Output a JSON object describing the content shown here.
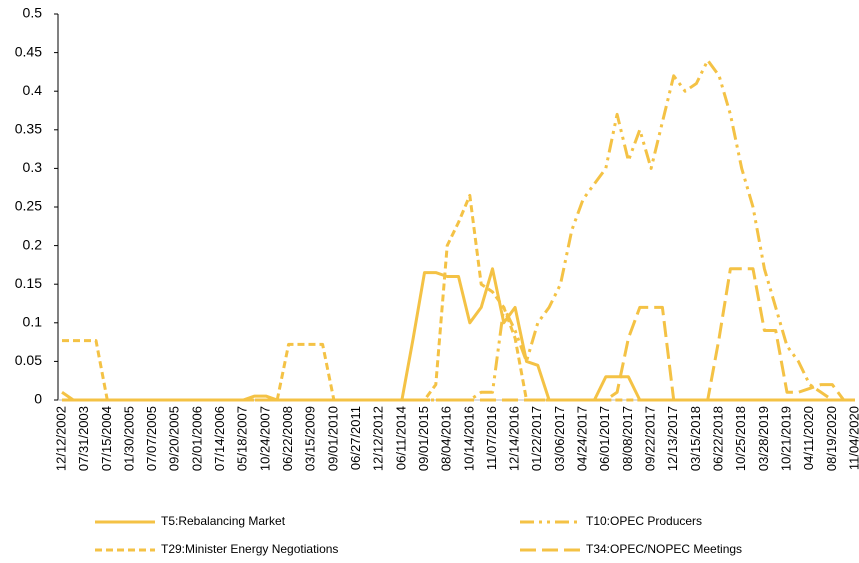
{
  "chart_data": {
    "type": "line",
    "categories": [
      "12/12/2002",
      null,
      "07/31/2003",
      null,
      "07/15/2004",
      null,
      "01/30/2005",
      null,
      "07/07/2005",
      null,
      "09/20/2005",
      null,
      "02/01/2006",
      null,
      "07/14/2006",
      null,
      "05/18/2007",
      null,
      "10/24/2007",
      null,
      "06/22/2008",
      null,
      "03/15/2009",
      null,
      "09/01/2010",
      null,
      "06/27/2011",
      null,
      "12/12/2012",
      null,
      "06/11/2014",
      null,
      "09/01/2015",
      null,
      "08/04/2016",
      null,
      "10/14/2016",
      null,
      "11/07/2016",
      null,
      "12/14/2016",
      null,
      "01/22/2017",
      null,
      "03/06/2017",
      null,
      "04/24/2017",
      null,
      "06/01/2017",
      null,
      "08/08/2017",
      null,
      "09/22/2017",
      null,
      "12/13/2017",
      null,
      "03/15/2018",
      null,
      "06/22/2018",
      null,
      "10/25/2018",
      null,
      "03/28/2019",
      null,
      "10/21/2019",
      null,
      "04/11/2020",
      null,
      "08/19/2020",
      null,
      "11/04/2020"
    ],
    "series": [
      {
        "name": "T5:Rebalancing Market",
        "color": "#f4c245",
        "values": [
          0.01,
          0,
          0,
          0,
          0,
          0,
          0,
          0,
          0,
          0,
          0,
          0,
          0,
          0,
          0,
          0,
          0,
          0.005,
          0.005,
          0,
          0,
          0,
          0,
          0,
          0,
          0,
          0,
          0,
          0,
          0,
          0,
          0.08,
          0.165,
          0.165,
          0.16,
          0.16,
          0.1,
          0.12,
          0.17,
          0.1,
          0.12,
          0.05,
          0.045,
          0,
          0,
          0,
          0,
          0,
          0.03,
          0.03,
          0.03,
          0,
          0,
          0,
          0,
          0,
          0,
          0,
          0,
          0,
          0,
          0,
          0,
          0,
          0,
          0,
          0,
          0,
          0,
          0,
          0
        ]
      },
      {
        "name": "T10:OPEC Producers",
        "color": "#f4c245",
        "values": [
          0,
          0,
          0,
          0,
          0,
          0,
          0,
          0,
          0,
          0,
          0,
          0,
          0,
          0,
          0,
          0,
          0,
          0,
          0,
          0,
          0,
          0,
          0,
          0,
          0,
          0,
          0,
          0,
          0,
          0,
          0,
          0,
          0,
          0,
          0,
          0,
          0,
          0.01,
          0.01,
          0.12,
          0.09,
          0.05,
          0.1,
          0.12,
          0.15,
          0.22,
          0.26,
          0.28,
          0.3,
          0.37,
          0.31,
          0.35,
          0.3,
          0.36,
          0.42,
          0.4,
          0.41,
          0.44,
          0.42,
          0.37,
          0.3,
          0.25,
          0.17,
          0.12,
          0.07,
          0.05,
          0.02,
          0.01,
          0,
          0,
          0
        ]
      },
      {
        "name": "T29:Minister Energy Negotiations",
        "color": "#f4c245",
        "values": [
          0.077,
          0.077,
          0.077,
          0.077,
          0,
          0,
          0,
          0,
          0,
          0,
          0,
          0,
          0,
          0,
          0,
          0,
          0,
          0,
          0,
          0,
          0.072,
          0.072,
          0.072,
          0.072,
          0,
          0,
          0,
          0,
          0,
          0,
          0,
          0,
          0,
          0.02,
          0.2,
          0.23,
          0.265,
          0.15,
          0.14,
          0.12,
          0.08,
          0,
          0,
          0,
          0,
          0,
          0,
          0,
          0,
          0,
          0,
          0,
          0,
          0,
          0,
          0,
          0,
          0,
          0,
          0,
          0,
          0,
          0,
          0,
          0,
          0,
          0,
          0,
          0,
          0,
          0
        ]
      },
      {
        "name": "T34:OPEC/NOPEC Meetings",
        "color": "#f4c245",
        "values": [
          0,
          0,
          0,
          0,
          0,
          0,
          0,
          0,
          0,
          0,
          0,
          0,
          0,
          0,
          0,
          0,
          0,
          0,
          0,
          0,
          0,
          0,
          0,
          0,
          0,
          0,
          0,
          0,
          0,
          0,
          0,
          0,
          0,
          0,
          0,
          0,
          0,
          0,
          0,
          0,
          0,
          0,
          0,
          0,
          0,
          0,
          0,
          0,
          0,
          0.01,
          0.08,
          0.12,
          0.12,
          0.12,
          0,
          0,
          0,
          0,
          0.08,
          0.17,
          0.17,
          0.17,
          0.09,
          0.09,
          0.01,
          0.01,
          0.015,
          0.02,
          0.02,
          0,
          0
        ]
      }
    ],
    "ylim": [
      0,
      0.5
    ],
    "yticks": [
      0,
      0.05,
      0.1,
      0.15,
      0.2,
      0.25,
      0.3,
      0.35,
      0.4,
      0.45,
      0.5
    ],
    "legend": "bottom"
  }
}
